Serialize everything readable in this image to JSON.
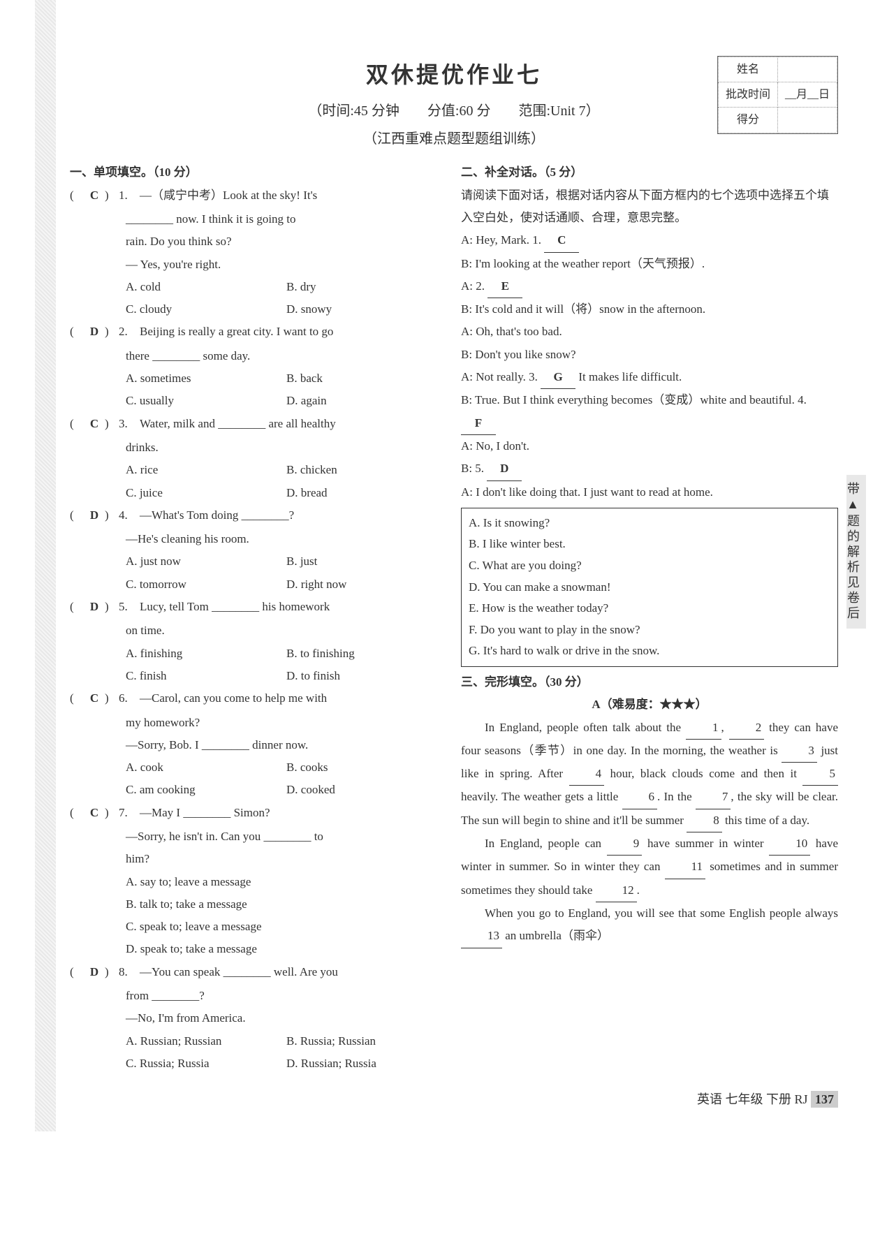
{
  "header": {
    "title": "双休提优作业七",
    "subtitle": "（时间:45 分钟　　分值:60 分　　范围:Unit 7）",
    "meta": "（江西重难点题型题组训练）",
    "info": {
      "name_label": "姓名",
      "review_label": "批改时间",
      "review_val": "__月__日",
      "score_label": "得分"
    }
  },
  "side_tab": "带▲题的解析见卷后",
  "footer": {
    "subject": "英语 七年级 下册 RJ",
    "page": "137"
  },
  "section1": {
    "title": "一、单项填空。（10 分）",
    "items": [
      {
        "ans": "C",
        "num": "1.",
        "lines": [
          "—（咸宁中考）Look at the sky! It's",
          "________ now. I think it is going to",
          "rain. Do you think so?",
          "— Yes, you're right."
        ],
        "opts": [
          "A. cold",
          "B. dry",
          "C. cloudy",
          "D. snowy"
        ]
      },
      {
        "ans": "D",
        "num": "2.",
        "lines": [
          "Beijing is really a great city. I want to go",
          "there ________ some day."
        ],
        "opts": [
          "A. sometimes",
          "B. back",
          "C. usually",
          "D. again"
        ]
      },
      {
        "ans": "C",
        "num": "3.",
        "lines": [
          "Water, milk and ________ are all healthy",
          "drinks."
        ],
        "opts": [
          "A. rice",
          "B. chicken",
          "C. juice",
          "D. bread"
        ]
      },
      {
        "ans": "D",
        "num": "4.",
        "lines": [
          "—What's Tom doing ________?",
          "—He's cleaning his room."
        ],
        "opts": [
          "A. just now",
          "B. just",
          "C. tomorrow",
          "D. right now"
        ]
      },
      {
        "ans": "D",
        "num": "5.",
        "lines": [
          "Lucy, tell Tom ________ his homework",
          "on time."
        ],
        "opts": [
          "A. finishing",
          "B. to finishing",
          "C. finish",
          "D. to finish"
        ]
      },
      {
        "ans": "C",
        "num": "6.",
        "lines": [
          "—Carol, can you come to help me with",
          "my homework?",
          "—Sorry, Bob. I ________ dinner now."
        ],
        "opts": [
          "A. cook",
          "B. cooks",
          "C. am cooking",
          "D. cooked"
        ]
      },
      {
        "ans": "C",
        "num": "7.",
        "lines": [
          "—May I ________ Simon?",
          "—Sorry, he isn't in. Can you ________ to",
          "him?"
        ],
        "opts_single": [
          "A. say to; leave a message",
          "B. talk to; take a message",
          "C. speak to; leave a message",
          "D. speak to; take a message"
        ]
      },
      {
        "ans": "D",
        "num": "8.",
        "lines": [
          "—You can speak ________ well. Are you",
          "from ________?",
          "—No, I'm from America."
        ],
        "opts": [
          "A. Russian; Russian",
          "B. Russia; Russian",
          "C. Russia; Russia",
          "D. Russian; Russia"
        ]
      }
    ]
  },
  "section2": {
    "title": "二、补全对话。（5 分）",
    "instr": "请阅读下面对话，根据对话内容从下面方框内的七个选项中选择五个填入空白处，使对话通顺、合理，意思完整。",
    "dialog": [
      {
        "t": "A: Hey, Mark. 1.",
        "a": "C"
      },
      {
        "t": "B: I'm looking at the weather report（天气预报）."
      },
      {
        "t": "A: 2.",
        "a": "E"
      },
      {
        "t": "B: It's cold and it will（将）snow in the afternoon."
      },
      {
        "t": "A: Oh, that's too bad."
      },
      {
        "t": "B: Don't you like snow?"
      },
      {
        "t": "A: Not really. 3.",
        "a": "G",
        "tail": " It makes life difficult."
      },
      {
        "t": "B: True. But I think everything becomes（变成）white and beautiful. 4.",
        "a": "F"
      },
      {
        "t": "A: No, I don't."
      },
      {
        "t": "B: 5.",
        "a": "D"
      },
      {
        "t": "A: I don't like doing that. I just want to read at home."
      }
    ],
    "options": [
      "A. Is it snowing?",
      "B. I like winter best.",
      "C. What are you doing?",
      "D. You can make a snowman!",
      "E. How is the weather today?",
      "F. Do you want to play in the snow?",
      "G. It's hard to walk or drive in the snow."
    ]
  },
  "section3": {
    "title": "三、完形填空。（30 分）",
    "diff": "A（难易度：★★★）",
    "para1": "In England, people often talk about the ",
    "b1": "1",
    "para2": ", ",
    "b2": "2",
    "para3": " they can have four seasons（季节）in one day. In the morning, the weather is ",
    "b3": "3",
    "para4": " just like in spring. After ",
    "b4": "4",
    "para5": " hour, black clouds come and then it ",
    "b5": "5",
    "para6": " heavily. The weather gets a little ",
    "b6": "6",
    "para7": ". In the ",
    "b7": "7",
    "para8": ", the sky will be clear. The sun will begin to shine and it'll be summer ",
    "b8": "8",
    "para9": " this time of a day.",
    "para10": "In England, people can ",
    "b9": "9",
    "para11": " have summer in winter ",
    "b10": "10",
    "para12": " have winter in summer. So in winter they can ",
    "b11": "11",
    "para13": " sometimes and in summer sometimes they should take ",
    "b12": "12",
    "para14": ".",
    "para15": "When you go to England, you will see that some English people always ",
    "b13": "13",
    "para16": " an umbrella（雨伞）"
  }
}
